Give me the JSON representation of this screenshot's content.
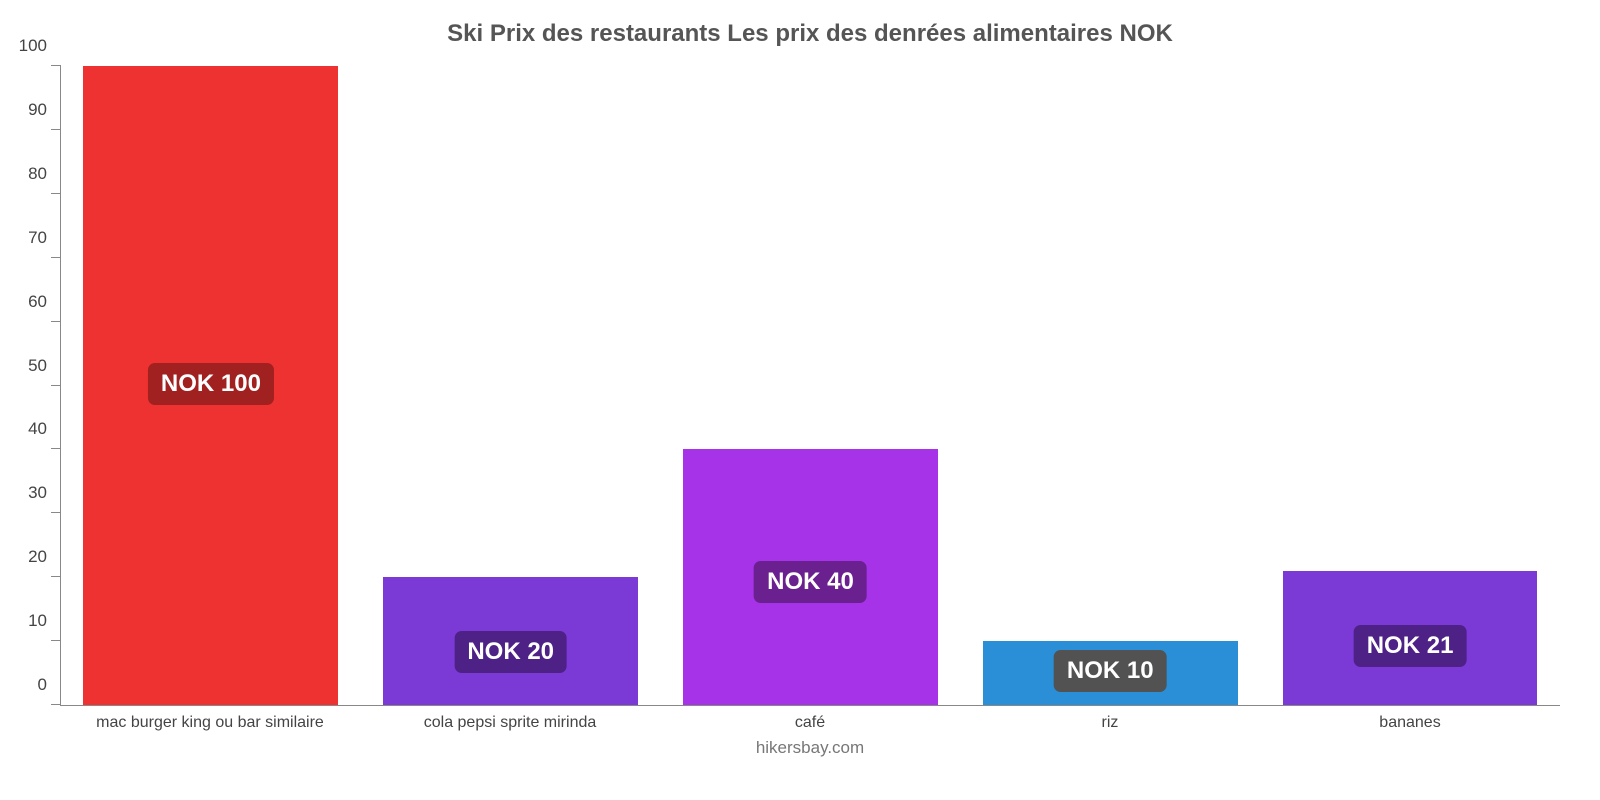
{
  "chart": {
    "type": "bar",
    "title": "Ski Prix des restaurants Les prix des denrées alimentaires NOK",
    "title_fontsize": 24,
    "title_color": "#555555",
    "background_color": "#ffffff",
    "axis_color": "#888888",
    "ylim": [
      0,
      100
    ],
    "ytick_step": 10,
    "yticks": [
      0,
      10,
      20,
      30,
      40,
      50,
      60,
      70,
      80,
      90,
      100
    ],
    "label_fontsize": 17,
    "label_color": "#444444",
    "xlabel_fontsize": 16,
    "bar_width_pct": 85,
    "value_label_fontsize": 24,
    "value_label_text_color": "#ffffff",
    "value_label_radius": 7,
    "footer": "hikersbay.com",
    "footer_color": "#777777",
    "categories": [
      "mac burger king ou bar similaire",
      "cola pepsi sprite mirinda",
      "café",
      "riz",
      "bananes"
    ],
    "values": [
      100,
      20,
      40,
      10,
      21
    ],
    "value_labels": [
      "NOK 100",
      "NOK 20",
      "NOK 40",
      "NOK 10",
      "NOK 21"
    ],
    "bar_colors": [
      "#ee3131",
      "#7b3ad6",
      "#a733e8",
      "#2a8fd6",
      "#7b3ad6"
    ],
    "label_bg_colors": [
      "#a12020",
      "#4e2186",
      "#6a208e",
      "#525252",
      "#4e2186"
    ],
    "label_y_offsets_pct": [
      47,
      5,
      16,
      2,
      6
    ]
  }
}
